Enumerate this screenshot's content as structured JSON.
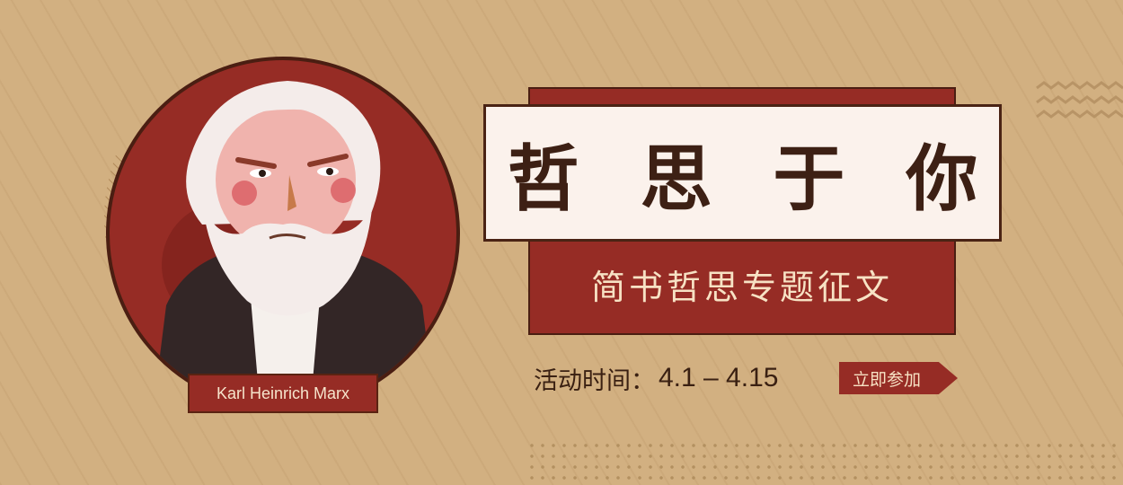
{
  "banner": {
    "title": "哲 思 于 你",
    "subtitle": "简书哲思专题征文",
    "event_time_label": "活动时间：",
    "event_time_value": "4.1 – 4.15",
    "join_button_label": "立即参加",
    "portrait_name": "Karl Heinrich Marx"
  },
  "colors": {
    "background": "#d2b081",
    "accent_red": "#962c25",
    "dark_brown": "#3d2014",
    "cream": "#fbf2ec"
  },
  "icons": [
    "marx-portrait-illustration",
    "zigzag-decoration",
    "dot-grid-decoration",
    "stripe-pattern"
  ]
}
